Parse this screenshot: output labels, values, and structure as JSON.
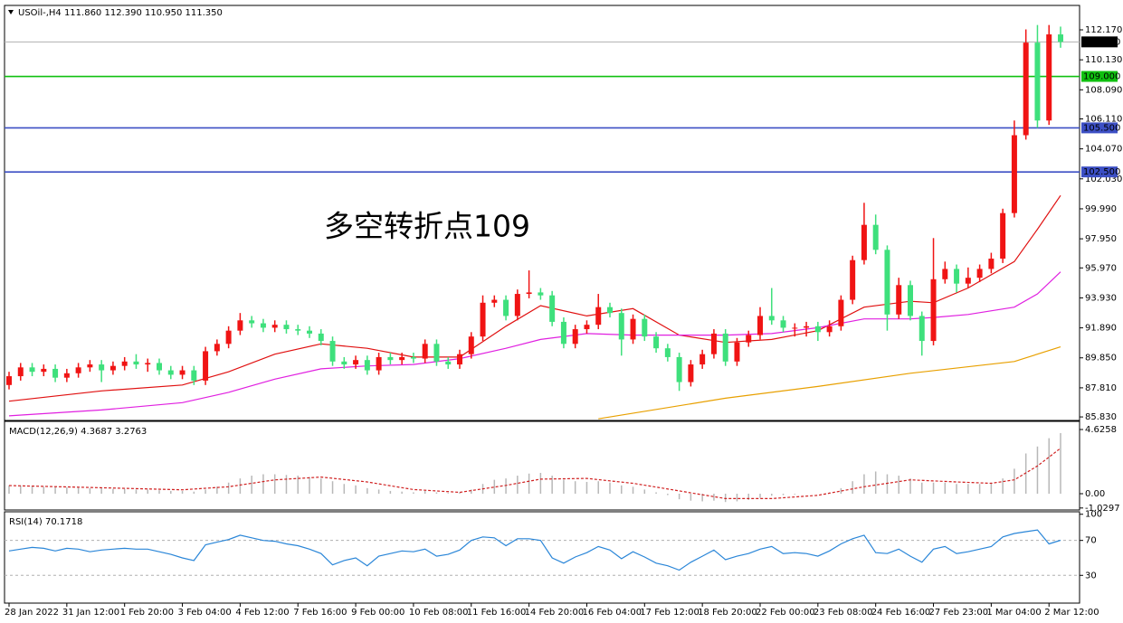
{
  "chart_data": [
    {
      "type": "candlestick",
      "title": "USOil-,H4 111.860 112.390 110.950 111.350",
      "annotation": "多空转折点109",
      "categories": [
        "28 Jan 2022",
        null,
        null,
        null,
        null,
        "31 Jan 12:00",
        null,
        null,
        null,
        null,
        "1 Feb 20:00",
        null,
        null,
        null,
        null,
        "3 Feb 04:00",
        null,
        null,
        null,
        null,
        "4 Feb 12:00",
        null,
        null,
        null,
        null,
        "7 Feb 16:00",
        null,
        null,
        null,
        null,
        "9 Feb 00:00",
        null,
        null,
        null,
        null,
        "10 Feb 08:00",
        null,
        null,
        null,
        null,
        "11 Feb 16:00",
        null,
        null,
        null,
        null,
        "14 Feb 20:00",
        null,
        null,
        null,
        null,
        "16 Feb 04:00",
        null,
        null,
        null,
        null,
        "17 Feb 12:00",
        null,
        null,
        null,
        null,
        "18 Feb 20:00",
        null,
        null,
        null,
        null,
        "22 Feb 00:00",
        null,
        null,
        null,
        null,
        "23 Feb 08:00",
        null,
        null,
        null,
        null,
        "24 Feb 16:00",
        null,
        null,
        null,
        null,
        "27 Feb 23:00",
        null,
        null,
        null,
        null,
        "1 Mar 04:00",
        null,
        null,
        null,
        null,
        "2 Mar 12:00",
        null
      ],
      "open": [
        88.0,
        88.6,
        89.2,
        88.9,
        89.1,
        88.5,
        88.8,
        89.2,
        89.4,
        89.0,
        89.3,
        89.6,
        89.4,
        89.5,
        89.0,
        88.7,
        89.0,
        88.3,
        90.3,
        90.8,
        91.7,
        92.4,
        92.2,
        91.9,
        92.1,
        91.8,
        91.7,
        91.5,
        91.0,
        89.6,
        89.4,
        89.7,
        89.0,
        89.9,
        89.7,
        89.9,
        89.8,
        90.8,
        89.6,
        89.4,
        90.1,
        91.3,
        93.6,
        93.8,
        92.7,
        94.2,
        94.3,
        94.1,
        92.3,
        90.8,
        91.8,
        92.1,
        93.3,
        92.9,
        91.1,
        92.5,
        91.3,
        90.5,
        89.9,
        88.2,
        89.4,
        90.1,
        91.5,
        89.6,
        90.9,
        91.4,
        92.7,
        92.4,
        91.9,
        91.9,
        92.0,
        91.6,
        92.0,
        93.8,
        96.5,
        98.9,
        97.2,
        92.8,
        94.8,
        92.7,
        91.0,
        95.2,
        95.9,
        94.9,
        95.3,
        95.9,
        96.6,
        99.7,
        105.0,
        111.3,
        106.0,
        111.86
      ],
      "high": [
        88.9,
        89.5,
        89.5,
        89.4,
        89.4,
        89.1,
        89.5,
        89.7,
        89.7,
        89.6,
        89.9,
        90.1,
        89.8,
        89.8,
        89.3,
        89.3,
        89.3,
        90.6,
        91.1,
        92.0,
        92.9,
        92.7,
        92.5,
        92.4,
        92.4,
        92.1,
        92.0,
        91.8,
        91.3,
        89.9,
        90.0,
        90.0,
        90.2,
        90.2,
        90.2,
        90.2,
        91.1,
        91.1,
        89.9,
        90.4,
        91.6,
        94.1,
        94.1,
        94.1,
        94.5,
        95.8,
        94.6,
        94.4,
        92.6,
        92.1,
        92.4,
        94.2,
        93.6,
        93.2,
        92.8,
        92.8,
        91.6,
        90.8,
        90.2,
        89.7,
        90.4,
        91.8,
        91.8,
        91.2,
        91.7,
        93.3,
        94.6,
        92.7,
        92.2,
        92.3,
        92.3,
        92.4,
        94.1,
        96.8,
        100.4,
        99.6,
        97.5,
        95.3,
        95.1,
        93.0,
        98.0,
        96.4,
        96.2,
        96.0,
        96.2,
        97.0,
        100.0,
        106.0,
        112.2,
        112.5,
        112.5,
        112.39
      ],
      "low": [
        87.7,
        88.3,
        88.6,
        88.6,
        88.2,
        88.2,
        88.5,
        88.9,
        88.2,
        88.7,
        89.0,
        89.1,
        88.9,
        88.7,
        88.4,
        88.4,
        88.0,
        88.0,
        90.0,
        90.5,
        91.4,
        91.9,
        91.6,
        91.6,
        91.5,
        91.4,
        91.2,
        90.7,
        89.3,
        89.1,
        89.1,
        88.7,
        88.7,
        89.4,
        89.4,
        89.5,
        89.5,
        89.3,
        89.1,
        89.1,
        89.8,
        91.0,
        93.3,
        92.4,
        92.4,
        93.9,
        93.8,
        92.0,
        90.5,
        90.5,
        91.5,
        91.8,
        92.6,
        90.0,
        90.8,
        91.0,
        90.2,
        89.6,
        87.6,
        87.9,
        89.1,
        89.8,
        89.3,
        89.3,
        90.6,
        91.1,
        92.1,
        91.6,
        91.3,
        91.3,
        91.0,
        91.3,
        91.7,
        93.5,
        96.2,
        96.9,
        91.7,
        92.5,
        92.4,
        90.0,
        90.7,
        94.9,
        94.3,
        94.6,
        95.0,
        95.6,
        96.3,
        99.4,
        104.7,
        105.5,
        105.7,
        110.95
      ],
      "close": [
        88.6,
        89.2,
        88.9,
        89.1,
        88.5,
        88.8,
        89.2,
        89.4,
        89.0,
        89.3,
        89.6,
        89.4,
        89.5,
        89.0,
        88.7,
        89.0,
        88.3,
        90.3,
        90.8,
        91.7,
        92.4,
        92.2,
        91.9,
        92.1,
        91.8,
        91.7,
        91.5,
        91.0,
        89.6,
        89.4,
        89.7,
        89.0,
        89.9,
        89.7,
        89.9,
        89.8,
        90.8,
        89.6,
        89.4,
        90.1,
        91.3,
        93.6,
        93.8,
        92.7,
        94.2,
        94.3,
        94.1,
        92.3,
        90.8,
        91.8,
        92.1,
        93.3,
        92.9,
        91.1,
        92.5,
        91.3,
        90.5,
        89.9,
        88.2,
        89.4,
        90.1,
        91.5,
        89.6,
        90.9,
        91.4,
        92.7,
        92.4,
        91.9,
        91.9,
        92.0,
        91.6,
        92.0,
        93.8,
        96.5,
        98.9,
        97.2,
        92.8,
        94.8,
        92.7,
        91.0,
        95.2,
        95.9,
        94.9,
        95.3,
        95.9,
        96.6,
        99.7,
        105.0,
        111.3,
        106.0,
        111.86,
        111.35
      ],
      "up_color": "#f01414",
      "down_color": "#3ee07c",
      "ylim": [
        85.65,
        113.77
      ],
      "yticks": [
        {
          "value": 112.17,
          "label": "112.170"
        },
        {
          "value": 110.13,
          "label": "110.130"
        },
        {
          "value": 108.09,
          "label": "108.090"
        },
        {
          "value": 106.11,
          "label": "106.110"
        },
        {
          "value": 104.07,
          "label": "104.070"
        },
        {
          "value": 102.03,
          "label": "102.030"
        },
        {
          "value": 99.99,
          "label": "99.990"
        },
        {
          "value": 97.95,
          "label": "97.950"
        },
        {
          "value": 95.97,
          "label": "95.970"
        },
        {
          "value": 93.93,
          "label": "93.930"
        },
        {
          "value": 91.89,
          "label": "91.890"
        },
        {
          "value": 89.85,
          "label": "89.850"
        },
        {
          "value": 87.81,
          "label": "87.810"
        },
        {
          "value": 85.83,
          "label": "85.830"
        }
      ],
      "levels": [
        {
          "value": 109,
          "label": "109.000",
          "color": "#10c010",
          "label_color": "#000000"
        },
        {
          "value": 105.5,
          "label": "105.500",
          "color": "#3c4fc4",
          "label_color": "#ffffff"
        },
        {
          "value": 102.5,
          "label": "102.500",
          "color": "#3c4fc4",
          "label_color": "#ffffff"
        }
      ],
      "last_price": {
        "value": 111.35,
        "label": "111.350",
        "color": "#b0b0b0"
      },
      "moving_averages": [
        {
          "color": "#e01010",
          "x": [
            0,
            8,
            15,
            19,
            23,
            27,
            31,
            35,
            39,
            43,
            46,
            50,
            54,
            58,
            62,
            66,
            70,
            74,
            78,
            80,
            83,
            87,
            89,
            91
          ],
          "values": [
            86.9,
            87.6,
            88.0,
            88.9,
            90.1,
            90.8,
            90.5,
            89.9,
            89.9,
            92.0,
            93.4,
            92.7,
            93.2,
            91.4,
            90.9,
            91.1,
            91.7,
            93.3,
            93.7,
            93.6,
            94.6,
            96.4,
            98.6,
            100.9
          ]
        },
        {
          "color": "#e020e0",
          "x": [
            0,
            8,
            15,
            19,
            23,
            27,
            31,
            35,
            39,
            43,
            46,
            50,
            54,
            58,
            62,
            66,
            70,
            74,
            78,
            80,
            83,
            87,
            89,
            91
          ],
          "values": [
            85.9,
            86.3,
            86.8,
            87.5,
            88.4,
            89.1,
            89.3,
            89.4,
            89.8,
            90.5,
            91.1,
            91.5,
            91.4,
            91.4,
            91.4,
            91.5,
            91.9,
            92.5,
            92.5,
            92.6,
            92.8,
            93.3,
            94.2,
            95.7
          ]
        },
        {
          "color": "#e8a000",
          "x": [
            51,
            62,
            70,
            78,
            87,
            91
          ],
          "values": [
            85.7,
            87.1,
            87.9,
            88.8,
            89.6,
            90.6
          ]
        }
      ]
    },
    {
      "type": "macd",
      "title": "MACD(12,26,9) 4.3687 3.2763",
      "values": [
        0.6,
        0.6,
        0.55,
        0.5,
        0.5,
        0.45,
        0.45,
        0.4,
        0.4,
        0.35,
        0.35,
        0.3,
        0.3,
        0.25,
        0.2,
        0.2,
        0.15,
        0.3,
        0.5,
        0.8,
        1.1,
        1.3,
        1.4,
        1.4,
        1.35,
        1.3,
        1.2,
        1.1,
        0.9,
        0.7,
        0.6,
        0.4,
        0.3,
        0.2,
        0.15,
        0.1,
        0.2,
        0.1,
        0.05,
        0.1,
        0.3,
        0.7,
        1.0,
        1.1,
        1.3,
        1.45,
        1.5,
        1.3,
        1.0,
        0.9,
        0.85,
        0.9,
        0.8,
        0.6,
        0.5,
        0.3,
        0.1,
        -0.1,
        -0.4,
        -0.5,
        -0.55,
        -0.5,
        -0.6,
        -0.55,
        -0.45,
        -0.3,
        -0.15,
        -0.1,
        -0.05,
        0.0,
        0.0,
        0.1,
        0.4,
        0.9,
        1.4,
        1.6,
        1.4,
        1.3,
        1.1,
        0.8,
        0.8,
        0.8,
        0.7,
        0.7,
        0.7,
        0.8,
        1.1,
        1.8,
        2.9,
        3.4,
        4.0,
        4.3687
      ],
      "color": "#b8b8b8",
      "signal": {
        "color": "#d02020",
        "x": [
          0,
          7,
          15,
          19,
          23,
          27,
          31,
          35,
          39,
          43,
          46,
          50,
          54,
          58,
          62,
          66,
          70,
          74,
          78,
          82,
          85,
          87,
          89,
          91
        ],
        "values": [
          0.59,
          0.45,
          0.28,
          0.5,
          1.0,
          1.2,
          0.85,
          0.3,
          0.1,
          0.6,
          1.05,
          1.1,
          0.75,
          0.2,
          -0.35,
          -0.35,
          -0.12,
          0.5,
          1.0,
          0.85,
          0.75,
          1.0,
          2.0,
          3.2763
        ]
      },
      "ylim": [
        -1.107,
        5.147
      ],
      "yticks": [
        4.6258,
        {
          "value": 0,
          "label": "0.00"
        },
        -1.0297
      ]
    },
    {
      "type": "line",
      "title": "RSI(14) 70.1718",
      "values": [
        58,
        60,
        62,
        61,
        58,
        61,
        60,
        57,
        59,
        60,
        61,
        60,
        60,
        57,
        54,
        50,
        47,
        65,
        68,
        71,
        76,
        73,
        70,
        69,
        66,
        64,
        60,
        55,
        42,
        47,
        50,
        41,
        52,
        55,
        58,
        57,
        60,
        52,
        54,
        59,
        70,
        74,
        73,
        64,
        72,
        72,
        70,
        50,
        44,
        51,
        56,
        63,
        59,
        49,
        57,
        51,
        44,
        41,
        36,
        45,
        52,
        59,
        48,
        52,
        55,
        60,
        63,
        55,
        56,
        55,
        52,
        58,
        66,
        72,
        76,
        56,
        55,
        60,
        52,
        45,
        60,
        63,
        55,
        57,
        60,
        63,
        74,
        78,
        80,
        82,
        66,
        70.1718
      ],
      "color": "#2a86d8",
      "ylim": [
        -0.8,
        101.8
      ],
      "yticks": [
        100,
        70,
        30
      ],
      "levels": [
        70,
        30
      ]
    }
  ]
}
